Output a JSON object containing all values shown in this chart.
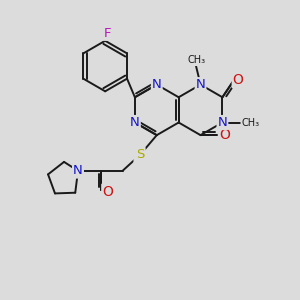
{
  "bg_color": "#dcdcdc",
  "bond_color": "#1a1a1a",
  "bond_width": 1.4,
  "atom_colors": {
    "C": "#1a1a1a",
    "N": "#1515cc",
    "O": "#cc1515",
    "F": "#bb15bb",
    "S": "#aaaa00"
  },
  "font_size": 9.0,
  "figsize": [
    3.0,
    3.0
  ],
  "dpi": 100
}
